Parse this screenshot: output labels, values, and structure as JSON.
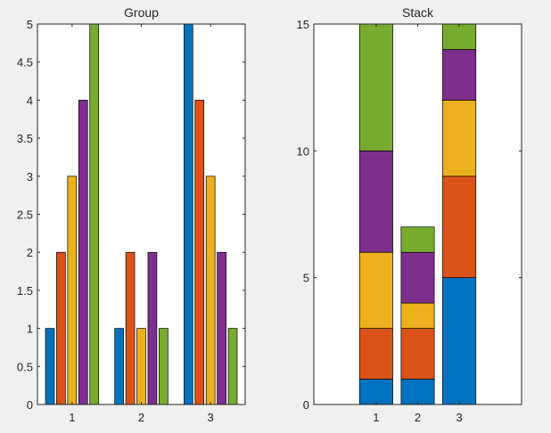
{
  "figure": {
    "background": "#f0f0f0"
  },
  "colors": [
    "#0072bd",
    "#d95319",
    "#edb120",
    "#7e2f8e",
    "#77ac30"
  ],
  "chart_data": [
    {
      "type": "bar",
      "mode": "grouped",
      "title": "Group",
      "categories": [
        "1",
        "2",
        "3"
      ],
      "series": [
        {
          "values": [
            1,
            1,
            5
          ]
        },
        {
          "values": [
            2,
            2,
            4
          ]
        },
        {
          "values": [
            3,
            1,
            3
          ]
        },
        {
          "values": [
            4,
            2,
            2
          ]
        },
        {
          "values": [
            5,
            1,
            1
          ]
        }
      ],
      "ylim": [
        0,
        5
      ],
      "yticks": [
        "0",
        "0.5",
        "1",
        "1.5",
        "2",
        "2.5",
        "3",
        "3.5",
        "4",
        "4.5",
        "5"
      ],
      "xticks": [
        "1",
        "2",
        "3"
      ],
      "grid": false
    },
    {
      "type": "bar",
      "mode": "stacked",
      "title": "Stack",
      "categories": [
        "1",
        "2",
        "3"
      ],
      "series": [
        {
          "values": [
            1,
            1,
            5
          ]
        },
        {
          "values": [
            2,
            2,
            4
          ]
        },
        {
          "values": [
            3,
            1,
            3
          ]
        },
        {
          "values": [
            4,
            2,
            2
          ]
        },
        {
          "values": [
            5,
            1,
            1
          ]
        }
      ],
      "ylim": [
        0,
        15
      ],
      "yticks": [
        "0",
        "5",
        "10",
        "15"
      ],
      "xticks": [
        "1",
        "2",
        "3"
      ],
      "grid": false
    }
  ]
}
